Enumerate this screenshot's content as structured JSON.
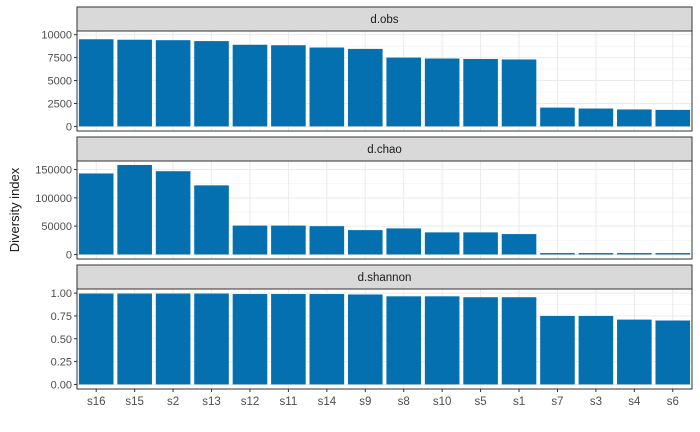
{
  "chart_data": {
    "type": "bar",
    "ylabel": "Diversity index",
    "xlabel": "",
    "bar_color": "#0570b0",
    "strip_color": "#d9d9d9",
    "grid": true,
    "categories": [
      "s16",
      "s15",
      "s2",
      "s13",
      "s12",
      "s11",
      "s14",
      "s9",
      "s8",
      "s10",
      "s5",
      "s1",
      "s7",
      "s3",
      "s4",
      "s6"
    ],
    "panels": [
      {
        "title": "d.obs",
        "values": [
          9500,
          9450,
          9400,
          9300,
          8900,
          8850,
          8600,
          8450,
          7500,
          7400,
          7350,
          7300,
          2050,
          1950,
          1850,
          1800
        ],
        "ylim": [
          -500,
          10400
        ],
        "ticks": [
          0,
          2500,
          5000,
          7500,
          10000
        ],
        "tick_labels": [
          "0",
          "2500",
          "5000",
          "7500",
          "10000"
        ]
      },
      {
        "title": "d.chao",
        "values": [
          143000,
          158000,
          147000,
          122000,
          51000,
          51000,
          50000,
          43000,
          46000,
          39000,
          39000,
          36000,
          2500,
          2500,
          2500,
          2500
        ],
        "ylim": [
          -8000,
          165000
        ],
        "ticks": [
          0,
          50000,
          100000,
          150000
        ],
        "tick_labels": [
          "0",
          "50000",
          "100000",
          "150000"
        ]
      },
      {
        "title": "d.shannon",
        "values": [
          0.995,
          0.995,
          0.995,
          0.995,
          0.99,
          0.99,
          0.99,
          0.985,
          0.965,
          0.965,
          0.955,
          0.955,
          0.75,
          0.75,
          0.71,
          0.7
        ],
        "ylim": [
          -0.05,
          1.045
        ],
        "ticks": [
          0,
          0.25,
          0.5,
          0.75,
          1.0
        ],
        "tick_labels": [
          "0.00",
          "0.25",
          "0.50",
          "0.75",
          "1.00"
        ]
      }
    ]
  }
}
